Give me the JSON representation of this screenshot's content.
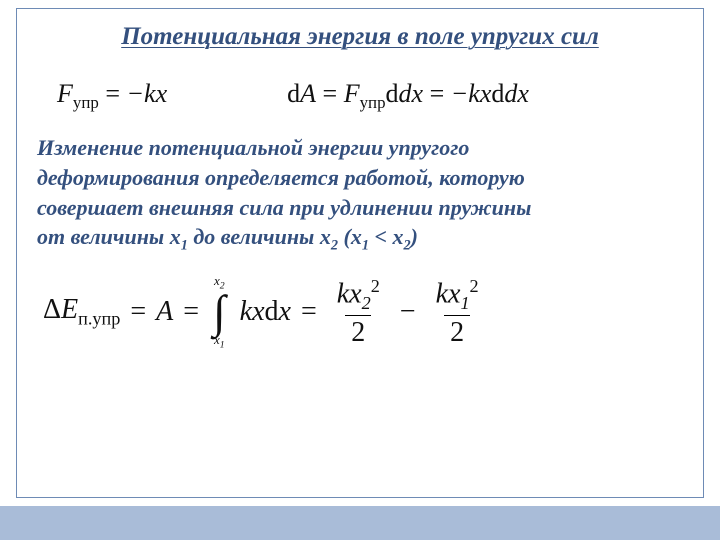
{
  "colors": {
    "title_color": "#34507e",
    "paragraph_color": "#34507e",
    "border_color": "#6e8bb5",
    "footer_color": "#a9bcd8",
    "text_black": "#111111",
    "background": "#ffffff"
  },
  "typography": {
    "title_fontsize": 25,
    "paragraph_fontsize": 22,
    "eq_fontsize": 26,
    "eq_big_fontsize": 28,
    "family": "Georgia, Times New Roman, serif"
  },
  "title": "Потенциальная энергия в поле упругих сил",
  "eq1": {
    "lhs_var": "F",
    "lhs_sub": "упр",
    "eq": " = ",
    "rhs": "−kx"
  },
  "eq2": {
    "d": "d",
    "A": "A",
    "eq": " = ",
    "F": "F",
    "Fsub": "упр",
    "dx": "dx",
    "eq2": " = ",
    "rhs": "−kx",
    "dx2": "dx"
  },
  "paragraph": {
    "l1": "Изменение потенциальной энергии упругого",
    "l2": "деформирования определяется работой, которую",
    "l3": "совершает внешняя сила при удлинении пружины",
    "l4a": "от величины ",
    "x1": "x",
    "x1sub": "1",
    "l4b": " до величины  ",
    "x2": "x",
    "x2sub": "2",
    "open": " (",
    "x1b": "x",
    "x1bsub": "1",
    "lt": " < ",
    "x2b": "x",
    "x2bsub": "2",
    "close": ")"
  },
  "eq_big": {
    "delta": "Δ",
    "E": "E",
    "Esub": "п.упр",
    "eq1": " = ",
    "A": "A",
    "eq2": " = ",
    "int_upper_var": "x",
    "int_upper_sub": "2",
    "int_lower_var": "x",
    "int_lower_sub": "1",
    "integrand_k": "kx",
    "integrand_d": "d",
    "integrand_x": "x",
    "eq3": " = ",
    "frac1_num_k": "kx",
    "frac1_num_sub": "2",
    "frac1_num_sup": "2",
    "frac1_den": "2",
    "minus": " − ",
    "frac2_num_k": "kx",
    "frac2_num_sub": "1",
    "frac2_num_sup": "2",
    "frac2_den": "2"
  }
}
